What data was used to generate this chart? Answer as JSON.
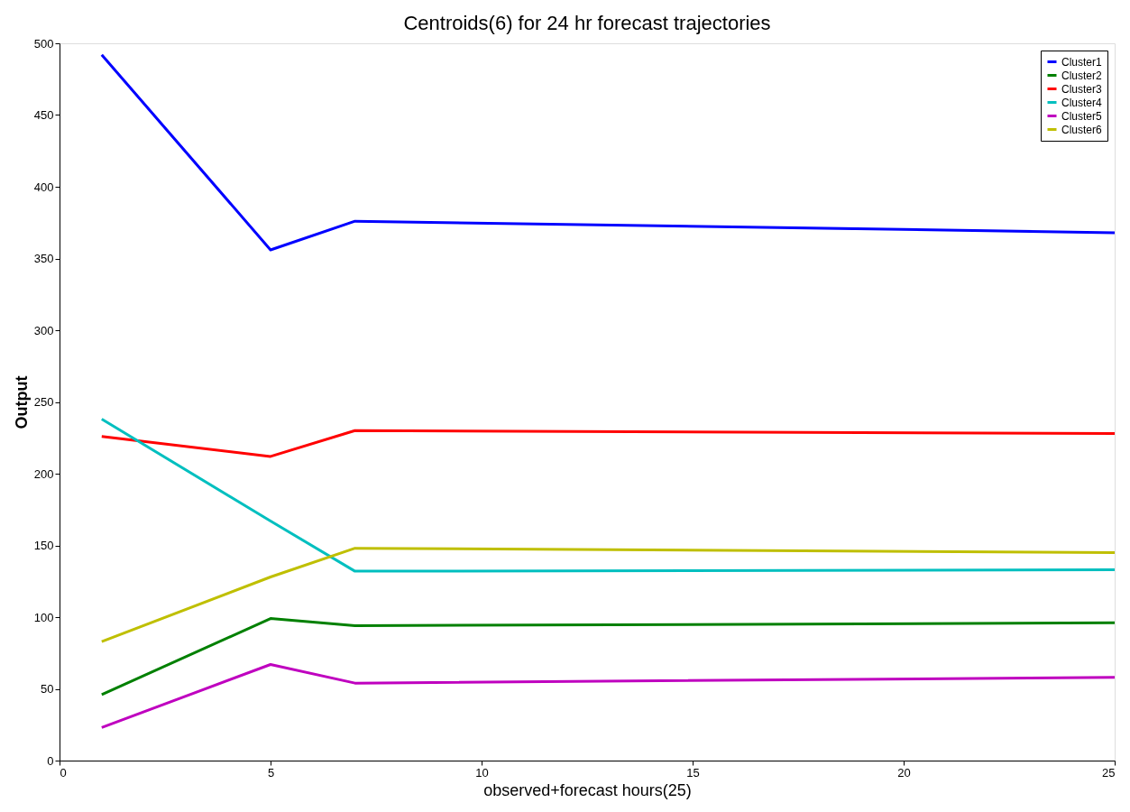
{
  "chart_data": {
    "type": "line",
    "title": "Centroids(6) for 24 hr forecast trajectories",
    "xlabel": "observed+forecast hours(25)",
    "ylabel": "Output",
    "x": [
      1,
      5,
      7,
      25
    ],
    "series": [
      {
        "name": "Cluster1",
        "color": "#0000ff",
        "values": [
          492,
          356,
          376,
          368
        ]
      },
      {
        "name": "Cluster2",
        "color": "#008000",
        "values": [
          46,
          99,
          94,
          96
        ]
      },
      {
        "name": "Cluster3",
        "color": "#ff0000",
        "values": [
          226,
          212,
          230,
          228
        ]
      },
      {
        "name": "Cluster4",
        "color": "#00bfbf",
        "values": [
          238,
          167,
          132,
          133
        ]
      },
      {
        "name": "Cluster5",
        "color": "#bf00bf",
        "values": [
          23,
          67,
          54,
          58
        ]
      },
      {
        "name": "Cluster6",
        "color": "#bfbf00",
        "values": [
          83,
          128,
          148,
          145
        ]
      }
    ],
    "xlim": [
      0,
      25
    ],
    "xticks": [
      0,
      5,
      10,
      15,
      20,
      25
    ],
    "ylim": [
      0,
      500
    ],
    "yticks": [
      0,
      50,
      100,
      150,
      200,
      250,
      300,
      350,
      400,
      450,
      500
    ],
    "grid": false,
    "legend": "top right",
    "marker": "none",
    "line_style": "solid"
  }
}
